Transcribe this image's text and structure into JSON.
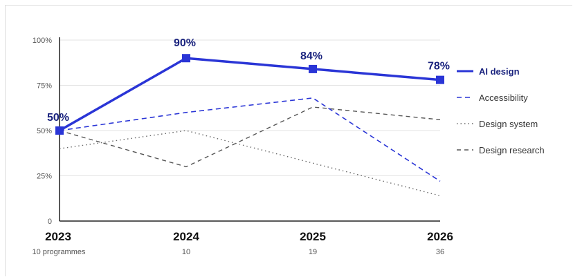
{
  "chart_data": {
    "type": "line",
    "x": [
      "2023",
      "2024",
      "2025",
      "2026"
    ],
    "x_sublabels": [
      "10 programmes",
      "10",
      "19",
      "36"
    ],
    "y_ticks": [
      "0",
      "25%",
      "50%",
      "75%",
      "100%"
    ],
    "ylim": [
      0,
      100
    ],
    "grid": true,
    "legend": "right",
    "series": [
      {
        "name": "AI design",
        "values": [
          50,
          90,
          84,
          78
        ],
        "labels": [
          "50%",
          "90%",
          "84%",
          "78%"
        ],
        "color": "#2a35d6",
        "style": "solid-markers"
      },
      {
        "name": "Accessibility",
        "values": [
          50,
          60,
          68,
          22
        ],
        "color": "#2a35d6",
        "style": "dashed"
      },
      {
        "name": "Design system",
        "values": [
          40,
          50,
          32,
          14
        ],
        "color": "#666666",
        "style": "dotted"
      },
      {
        "name": "Design research",
        "values": [
          50,
          30,
          63,
          56
        ],
        "color": "#555555",
        "style": "dashed-gray"
      }
    ]
  }
}
